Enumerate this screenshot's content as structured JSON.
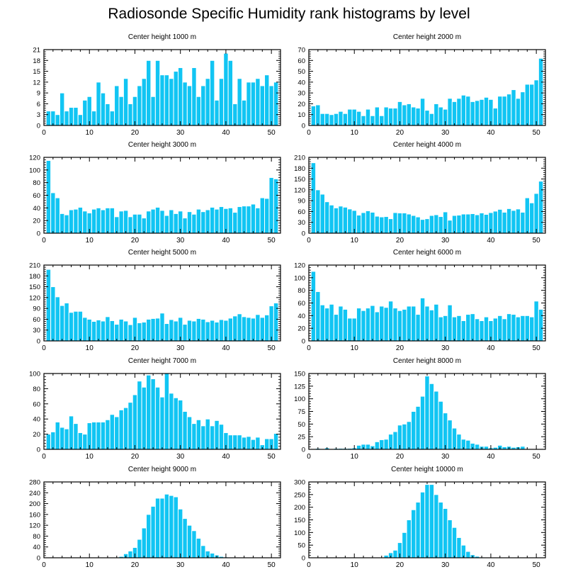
{
  "title": "Radiosonde Specific Humidity rank histograms by level",
  "colors": {
    "bar": "#11c5f3",
    "bar_edge": "#ffffff",
    "axis": "#000000"
  },
  "chart_data": [
    {
      "type": "bar",
      "title": "Center height 1000 m",
      "x": [
        1,
        2,
        3,
        4,
        5,
        6,
        7,
        8,
        9,
        10,
        11,
        12,
        13,
        14,
        15,
        16,
        17,
        18,
        19,
        20,
        21,
        22,
        23,
        24,
        25,
        26,
        27,
        28,
        29,
        30,
        31,
        32,
        33,
        34,
        35,
        36,
        37,
        38,
        39,
        40,
        41,
        42,
        43,
        44,
        45,
        46,
        47,
        48,
        49,
        50,
        51
      ],
      "values": [
        4,
        4,
        3,
        9,
        4,
        5,
        5,
        3,
        7,
        8,
        4,
        12,
        9,
        6,
        4,
        11,
        8,
        13,
        6,
        8,
        11,
        13,
        18,
        8,
        18,
        14,
        14,
        13,
        15,
        16,
        12,
        11,
        16,
        8,
        11,
        13,
        18,
        7,
        13,
        20,
        18,
        6,
        13,
        7,
        12,
        12,
        13,
        11,
        14,
        11,
        12
      ],
      "xlim": [
        0,
        52
      ],
      "xticks": [
        0,
        10,
        20,
        30,
        40,
        50
      ],
      "ylim": [
        0,
        21
      ],
      "yticks": [
        0,
        3,
        6,
        9,
        12,
        15,
        18,
        21
      ]
    },
    {
      "type": "bar",
      "title": "Center height 2000 m",
      "x": [
        1,
        2,
        3,
        4,
        5,
        6,
        7,
        8,
        9,
        10,
        11,
        12,
        13,
        14,
        15,
        16,
        17,
        18,
        19,
        20,
        21,
        22,
        23,
        24,
        25,
        26,
        27,
        28,
        29,
        30,
        31,
        32,
        33,
        34,
        35,
        36,
        37,
        38,
        39,
        40,
        41,
        42,
        43,
        44,
        45,
        46,
        47,
        48,
        49,
        50,
        51
      ],
      "values": [
        18,
        19,
        11,
        11,
        10,
        11,
        13,
        11,
        15,
        15,
        13,
        9,
        15,
        9,
        17,
        9,
        17,
        16,
        16,
        22,
        19,
        20,
        17,
        16,
        25,
        14,
        11,
        20,
        17,
        15,
        25,
        22,
        25,
        28,
        27,
        22,
        23,
        24,
        26,
        24,
        16,
        27,
        27,
        29,
        33,
        25,
        31,
        38,
        38,
        42,
        62
      ],
      "xlim": [
        0,
        52
      ],
      "xticks": [
        0,
        10,
        20,
        30,
        40,
        50
      ],
      "ylim": [
        0,
        70
      ],
      "yticks": [
        0,
        10,
        20,
        30,
        40,
        50,
        60,
        70
      ]
    },
    {
      "type": "bar",
      "title": "Center height 3000 m",
      "x": [
        1,
        2,
        3,
        4,
        5,
        6,
        7,
        8,
        9,
        10,
        11,
        12,
        13,
        14,
        15,
        16,
        17,
        18,
        19,
        20,
        21,
        22,
        23,
        24,
        25,
        26,
        27,
        28,
        29,
        30,
        31,
        32,
        33,
        34,
        35,
        36,
        37,
        38,
        39,
        40,
        41,
        42,
        43,
        44,
        45,
        46,
        47,
        48,
        49,
        50,
        51
      ],
      "values": [
        115,
        64,
        56,
        31,
        29,
        37,
        38,
        41,
        35,
        32,
        38,
        40,
        37,
        40,
        40,
        26,
        35,
        36,
        26,
        30,
        30,
        24,
        35,
        38,
        41,
        36,
        28,
        37,
        31,
        35,
        24,
        34,
        30,
        38,
        34,
        37,
        41,
        38,
        42,
        39,
        40,
        33,
        42,
        43,
        43,
        46,
        40,
        56,
        55,
        88,
        86
      ],
      "xlim": [
        0,
        52
      ],
      "xticks": [
        0,
        10,
        20,
        30,
        40,
        50
      ],
      "ylim": [
        0,
        120
      ],
      "yticks": [
        0,
        20,
        40,
        60,
        80,
        100,
        120
      ]
    },
    {
      "type": "bar",
      "title": "Center height 4000 m",
      "x": [
        1,
        2,
        3,
        4,
        5,
        6,
        7,
        8,
        9,
        10,
        11,
        12,
        13,
        14,
        15,
        16,
        17,
        18,
        19,
        20,
        21,
        22,
        23,
        24,
        25,
        26,
        27,
        28,
        29,
        30,
        31,
        32,
        33,
        34,
        35,
        36,
        37,
        38,
        39,
        40,
        41,
        42,
        43,
        44,
        45,
        46,
        47,
        48,
        49,
        50,
        51
      ],
      "values": [
        195,
        120,
        108,
        87,
        78,
        70,
        75,
        72,
        67,
        63,
        50,
        57,
        62,
        58,
        47,
        45,
        46,
        40,
        57,
        56,
        56,
        53,
        49,
        45,
        38,
        40,
        49,
        51,
        46,
        59,
        36,
        49,
        50,
        53,
        53,
        54,
        51,
        56,
        52,
        57,
        61,
        66,
        58,
        68,
        63,
        67,
        58,
        98,
        84,
        110,
        144
      ],
      "xlim": [
        0,
        52
      ],
      "xticks": [
        0,
        10,
        20,
        30,
        40,
        50
      ],
      "ylim": [
        0,
        210
      ],
      "yticks": [
        0,
        30,
        60,
        90,
        120,
        150,
        180,
        210
      ]
    },
    {
      "type": "bar",
      "title": "Center height 5000 m",
      "x": [
        1,
        2,
        3,
        4,
        5,
        6,
        7,
        8,
        9,
        10,
        11,
        12,
        13,
        14,
        15,
        16,
        17,
        18,
        19,
        20,
        21,
        22,
        23,
        24,
        25,
        26,
        27,
        28,
        29,
        30,
        31,
        32,
        33,
        34,
        35,
        36,
        37,
        38,
        39,
        40,
        41,
        42,
        43,
        44,
        45,
        46,
        47,
        48,
        49,
        50,
        51
      ],
      "values": [
        198,
        150,
        122,
        98,
        105,
        79,
        82,
        82,
        65,
        60,
        54,
        58,
        55,
        67,
        56,
        46,
        60,
        55,
        45,
        65,
        50,
        52,
        60,
        62,
        63,
        77,
        48,
        59,
        55,
        65,
        46,
        57,
        55,
        62,
        60,
        53,
        57,
        52,
        59,
        57,
        63,
        69,
        75,
        67,
        65,
        63,
        73,
        65,
        72,
        97,
        105
      ],
      "xlim": [
        0,
        52
      ],
      "xticks": [
        0,
        10,
        20,
        30,
        40,
        50
      ],
      "ylim": [
        0,
        210
      ],
      "yticks": [
        0,
        30,
        60,
        90,
        120,
        150,
        180,
        210
      ]
    },
    {
      "type": "bar",
      "title": "Center height 6000 m",
      "x": [
        1,
        2,
        3,
        4,
        5,
        6,
        7,
        8,
        9,
        10,
        11,
        12,
        13,
        14,
        15,
        16,
        17,
        18,
        19,
        20,
        21,
        22,
        23,
        24,
        25,
        26,
        27,
        28,
        29,
        30,
        31,
        32,
        33,
        34,
        35,
        36,
        37,
        38,
        39,
        40,
        41,
        42,
        43,
        44,
        45,
        46,
        47,
        48,
        49,
        50,
        51
      ],
      "values": [
        110,
        78,
        57,
        52,
        58,
        42,
        55,
        50,
        36,
        36,
        52,
        48,
        52,
        56,
        46,
        55,
        53,
        63,
        52,
        48,
        50,
        55,
        55,
        42,
        68,
        55,
        49,
        58,
        38,
        40,
        57,
        38,
        40,
        32,
        42,
        43,
        35,
        32,
        38,
        32,
        36,
        40,
        35,
        43,
        42,
        38,
        40,
        40,
        38,
        63,
        50
      ],
      "xlim": [
        0,
        52
      ],
      "xticks": [
        0,
        10,
        20,
        30,
        40,
        50
      ],
      "ylim": [
        0,
        120
      ],
      "yticks": [
        0,
        20,
        40,
        60,
        80,
        100,
        120
      ]
    },
    {
      "type": "bar",
      "title": "Center height 7000 m",
      "x": [
        1,
        2,
        3,
        4,
        5,
        6,
        7,
        8,
        9,
        10,
        11,
        12,
        13,
        14,
        15,
        16,
        17,
        18,
        19,
        20,
        21,
        22,
        23,
        24,
        25,
        26,
        27,
        28,
        29,
        30,
        31,
        32,
        33,
        34,
        35,
        36,
        37,
        38,
        39,
        40,
        41,
        42,
        43,
        44,
        45,
        46,
        47,
        48,
        49,
        50,
        51
      ],
      "values": [
        20,
        23,
        36,
        29,
        27,
        44,
        34,
        22,
        20,
        35,
        36,
        36,
        36,
        39,
        46,
        43,
        52,
        55,
        62,
        72,
        90,
        82,
        98,
        93,
        82,
        69,
        100,
        74,
        68,
        65,
        50,
        43,
        34,
        39,
        31,
        40,
        31,
        38,
        33,
        22,
        19,
        19,
        19,
        16,
        17,
        13,
        16,
        6,
        14,
        14,
        21
      ],
      "xlim": [
        0,
        52
      ],
      "xticks": [
        0,
        10,
        20,
        30,
        40,
        50
      ],
      "ylim": [
        0,
        100
      ],
      "yticks": [
        0,
        20,
        40,
        60,
        80,
        100
      ]
    },
    {
      "type": "bar",
      "title": "Center height 8000 m",
      "x": [
        1,
        2,
        3,
        4,
        5,
        6,
        7,
        8,
        9,
        10,
        11,
        12,
        13,
        14,
        15,
        16,
        17,
        18,
        19,
        20,
        21,
        22,
        23,
        24,
        25,
        26,
        27,
        28,
        29,
        30,
        31,
        32,
        33,
        34,
        35,
        36,
        37,
        38,
        39,
        40,
        41,
        42,
        43,
        44,
        45,
        46,
        47,
        48,
        49,
        50,
        51
      ],
      "values": [
        0,
        2,
        1,
        3,
        0,
        2,
        2,
        2,
        2,
        3,
        8,
        10,
        10,
        7,
        15,
        19,
        20,
        30,
        35,
        48,
        50,
        55,
        75,
        85,
        105,
        145,
        130,
        115,
        95,
        72,
        58,
        42,
        30,
        20,
        18,
        12,
        10,
        6,
        6,
        3,
        4,
        8,
        5,
        6,
        4,
        5,
        6,
        0,
        0,
        0,
        0
      ],
      "xlim": [
        0,
        52
      ],
      "xticks": [
        0,
        10,
        20,
        30,
        40,
        50
      ],
      "ylim": [
        0,
        150
      ],
      "yticks": [
        0,
        25,
        50,
        75,
        100,
        125,
        150
      ]
    },
    {
      "type": "bar",
      "title": "Center height 9000 m",
      "x": [
        1,
        2,
        3,
        4,
        5,
        6,
        7,
        8,
        9,
        10,
        11,
        12,
        13,
        14,
        15,
        16,
        17,
        18,
        19,
        20,
        21,
        22,
        23,
        24,
        25,
        26,
        27,
        28,
        29,
        30,
        31,
        32,
        33,
        34,
        35,
        36,
        37,
        38,
        39,
        40,
        41,
        42,
        43,
        44,
        45,
        46,
        47,
        48,
        49,
        50,
        51
      ],
      "values": [
        0,
        0,
        0,
        0,
        0,
        0,
        0,
        0,
        0,
        0,
        0,
        0,
        0,
        0,
        0,
        2,
        5,
        15,
        25,
        38,
        68,
        110,
        160,
        190,
        220,
        220,
        235,
        230,
        225,
        180,
        145,
        120,
        100,
        72,
        45,
        25,
        17,
        10,
        5,
        3,
        2,
        1,
        0,
        0,
        0,
        0,
        0,
        0,
        0,
        0,
        0
      ],
      "xlim": [
        0,
        52
      ],
      "xticks": [
        0,
        10,
        20,
        30,
        40,
        50
      ],
      "ylim": [
        0,
        280
      ],
      "yticks": [
        0,
        40,
        80,
        120,
        160,
        200,
        240,
        280
      ]
    },
    {
      "type": "bar",
      "title": "Center height 10000 m",
      "x": [
        1,
        2,
        3,
        4,
        5,
        6,
        7,
        8,
        9,
        10,
        11,
        12,
        13,
        14,
        15,
        16,
        17,
        18,
        19,
        20,
        21,
        22,
        23,
        24,
        25,
        26,
        27,
        28,
        29,
        30,
        31,
        32,
        33,
        34,
        35,
        36,
        37,
        38,
        39,
        40,
        41,
        42,
        43,
        44,
        45,
        46,
        47,
        48,
        49,
        50,
        51
      ],
      "values": [
        0,
        0,
        0,
        0,
        0,
        0,
        0,
        0,
        0,
        0,
        0,
        0,
        0,
        0,
        0,
        0,
        10,
        20,
        30,
        60,
        100,
        150,
        190,
        220,
        260,
        290,
        290,
        250,
        220,
        195,
        150,
        120,
        80,
        50,
        25,
        12,
        6,
        3,
        1,
        0,
        0,
        0,
        0,
        0,
        0,
        0,
        0,
        0,
        0,
        0,
        0
      ],
      "xlim": [
        0,
        52
      ],
      "xticks": [
        0,
        10,
        20,
        30,
        40,
        50
      ],
      "ylim": [
        0,
        300
      ],
      "yticks": [
        0,
        50,
        100,
        150,
        200,
        250,
        300
      ]
    }
  ]
}
